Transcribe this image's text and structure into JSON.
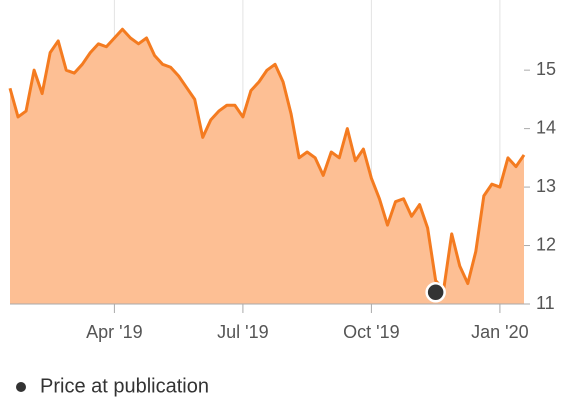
{
  "chart_data": {
    "type": "area",
    "categories": [
      null,
      null,
      null,
      null,
      null,
      null,
      null,
      null,
      null,
      null,
      null,
      null,
      null,
      "Apr '19",
      null,
      null,
      null,
      null,
      null,
      null,
      null,
      null,
      null,
      null,
      null,
      null,
      null,
      null,
      null,
      "Jul '19",
      null,
      null,
      null,
      null,
      null,
      null,
      null,
      null,
      null,
      null,
      null,
      null,
      null,
      null,
      null,
      "Oct '19",
      null,
      null,
      null,
      null,
      null,
      null,
      null,
      null,
      null,
      null,
      null,
      null,
      null,
      null,
      null,
      "Jan '20",
      null,
      null,
      null
    ],
    "values": [
      14.69,
      14.2,
      14.3,
      15.0,
      14.6,
      15.3,
      15.5,
      15.0,
      14.95,
      15.1,
      15.3,
      15.45,
      15.4,
      15.55,
      15.7,
      15.55,
      15.45,
      15.55,
      15.25,
      15.1,
      15.05,
      14.9,
      14.7,
      14.5,
      13.85,
      14.15,
      14.3,
      14.4,
      14.4,
      14.2,
      14.65,
      14.8,
      15.0,
      15.1,
      14.8,
      14.25,
      13.5,
      13.6,
      13.5,
      13.2,
      13.6,
      13.5,
      14.0,
      13.45,
      13.65,
      13.15,
      12.8,
      12.35,
      12.75,
      12.8,
      12.5,
      12.7,
      12.3,
      11.4,
      11.25,
      12.2,
      11.65,
      11.35,
      11.9,
      12.85,
      13.05,
      13.0,
      13.5,
      13.35,
      13.55
    ],
    "color": "#f47b20",
    "fill": "#fdbf94",
    "publication": {
      "name": "Price at publication",
      "color": "#333333",
      "values": [
        null,
        null,
        null,
        null,
        null,
        null,
        null,
        null,
        null,
        null,
        null,
        null,
        null,
        null,
        null,
        null,
        null,
        null,
        null,
        null,
        null,
        null,
        null,
        null,
        null,
        null,
        null,
        null,
        null,
        null,
        null,
        null,
        null,
        null,
        null,
        null,
        null,
        null,
        null,
        null,
        null,
        null,
        null,
        null,
        null,
        null,
        null,
        null,
        null,
        null,
        null,
        null,
        null,
        11.2,
        null,
        null,
        null,
        null,
        null,
        null,
        null,
        null,
        null,
        null,
        null
      ]
    },
    "ylim": [
      11,
      16.2
    ],
    "yticks": [
      11,
      12,
      13,
      14,
      15
    ],
    "grid": true
  }
}
